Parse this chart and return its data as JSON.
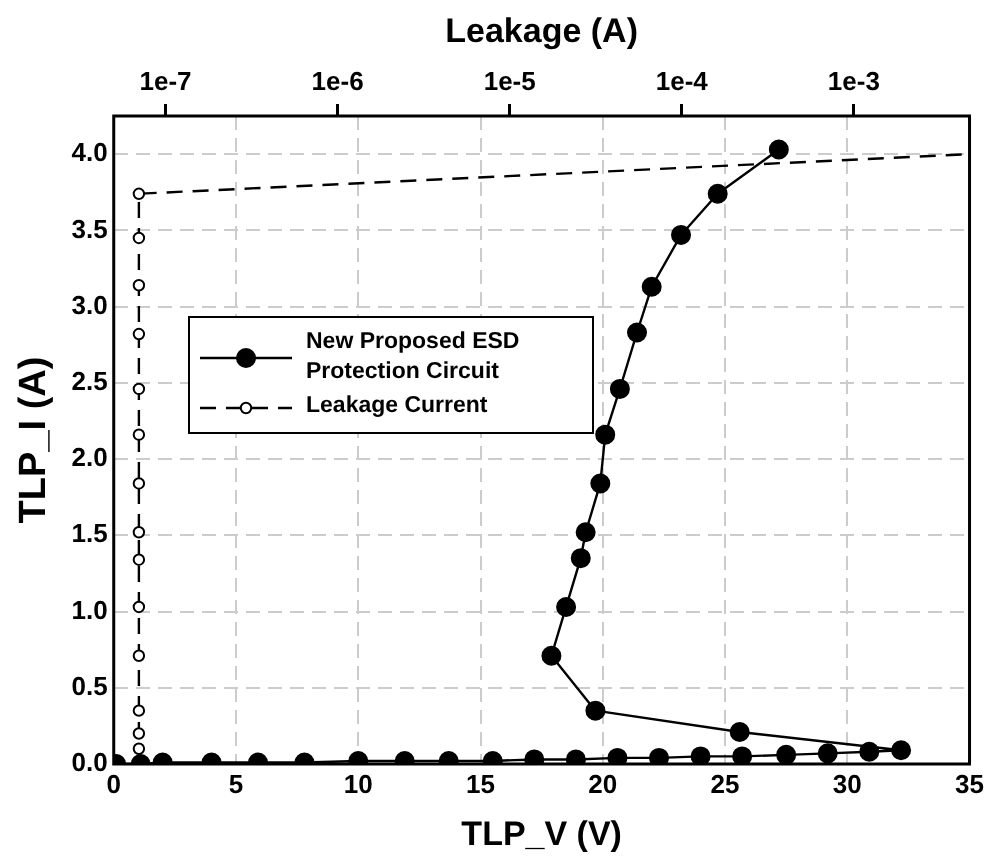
{
  "chart_data": {
    "type": "line",
    "xlabel": "TLP_V (V)",
    "ylabel": "TLP_I (A)",
    "x2label": "Leakage (A)",
    "xlim": [
      0,
      35
    ],
    "xticks": [
      0,
      5,
      10,
      15,
      20,
      25,
      30,
      35
    ],
    "ylim": [
      0,
      4.25
    ],
    "yticks": [
      {
        "value": 0,
        "label": "0.0"
      },
      {
        "value": 0.5,
        "label": "0.5"
      },
      {
        "value": 1,
        "label": "1.0"
      },
      {
        "value": 1.5,
        "label": "1.5"
      },
      {
        "value": 2,
        "label": "2.0"
      },
      {
        "value": 2.5,
        "label": "2.5"
      },
      {
        "value": 3,
        "label": "3.0"
      },
      {
        "value": 3.5,
        "label": "3.5"
      },
      {
        "value": 4,
        "label": "4.0"
      }
    ],
    "x2lim": [
      5e-08,
      0.0047
    ],
    "x2ticks": [
      {
        "value": 1e-07,
        "label": "1e-7"
      },
      {
        "value": 1e-06,
        "label": "1e-6"
      },
      {
        "value": 1e-05,
        "label": "1e-5"
      },
      {
        "value": 0.0001,
        "label": "1e-4"
      },
      {
        "value": 0.001,
        "label": "1e-3"
      }
    ],
    "log": "x2",
    "grid": true,
    "legend": "left",
    "series": [
      {
        "name": "New Proposed ESD Protection Circuit",
        "color": "#000000",
        "marker": "circle",
        "line_style": "solid",
        "x": [
          0.1,
          1.1,
          2.0,
          4.0,
          5.9,
          7.8,
          10.0,
          11.9,
          13.7,
          15.5,
          17.2,
          18.9,
          20.6,
          22.3,
          24.0,
          25.7,
          27.5,
          29.2,
          30.9,
          32.2,
          25.6,
          19.7,
          17.9,
          18.5,
          19.1,
          19.3,
          19.9,
          20.1,
          20.7,
          21.4,
          22.0,
          23.2,
          24.7,
          27.2
        ],
        "values": [
          0,
          0,
          0.01,
          0.01,
          0.01,
          0.01,
          0.02,
          0.02,
          0.02,
          0.02,
          0.03,
          0.03,
          0.04,
          0.04,
          0.05,
          0.05,
          0.06,
          0.07,
          0.08,
          0.09,
          0.21,
          0.35,
          0.71,
          1.03,
          1.35,
          1.52,
          1.84,
          2.16,
          2.46,
          2.83,
          3.13,
          3.47,
          3.74,
          4.03
        ]
      },
      {
        "name": "Leakage Current",
        "axis": "x2",
        "color": "#000000",
        "marker": "circle",
        "line_style": "dashed",
        "x": [
          7e-08,
          7e-08,
          7e-08,
          7e-08,
          7e-08,
          7e-08,
          7e-08,
          7e-08,
          7e-08,
          7e-08,
          7e-08,
          7e-08,
          7e-08,
          7e-08,
          7e-08,
          0.0047
        ],
        "values": [
          0,
          0.1,
          0.2,
          0.35,
          0.71,
          1.03,
          1.34,
          1.52,
          1.84,
          2.16,
          2.46,
          2.82,
          3.14,
          3.45,
          3.74,
          4.0
        ]
      }
    ]
  }
}
